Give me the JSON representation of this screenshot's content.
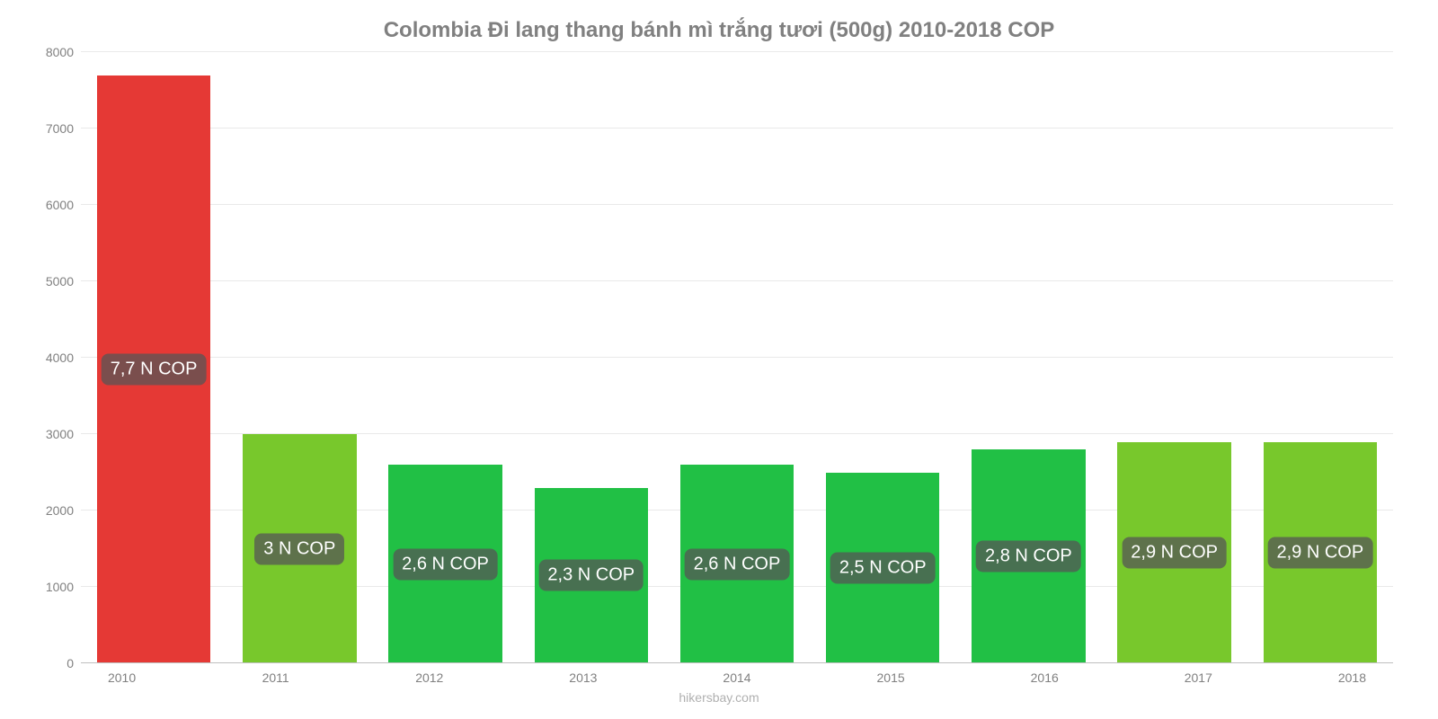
{
  "chart": {
    "type": "bar",
    "title": "Colombia Đi lang thang bánh mì trắng tươi (500g) 2010-2018 COP",
    "title_fontsize": 24,
    "title_color": "#808080",
    "attribution": "hikersbay.com",
    "attribution_color": "#b0b0b0",
    "background_color": "#ffffff",
    "grid_color": "#e9e9e9",
    "axis_color": "#bfbfbf",
    "tick_label_color": "#808080",
    "tick_label_fontsize": 14,
    "bar_label_bg": "rgba(85,85,85,0.75)",
    "bar_label_color": "#ffffff",
    "bar_label_fontsize": 20,
    "bar_width": 0.78,
    "ylim": [
      0,
      8000
    ],
    "ytick_step": 1000,
    "yticks": [
      0,
      1000,
      2000,
      3000,
      4000,
      5000,
      6000,
      7000,
      8000
    ],
    "categories": [
      "2010",
      "2011",
      "2012",
      "2013",
      "2014",
      "2015",
      "2016",
      "2017",
      "2018"
    ],
    "values": [
      7700,
      3000,
      2600,
      2300,
      2600,
      2500,
      2800,
      2900,
      2900
    ],
    "bar_colors": [
      "#e53935",
      "#78c82c",
      "#21c045",
      "#21c045",
      "#21c045",
      "#21c045",
      "#21c045",
      "#78c82c",
      "#78c82c"
    ],
    "bar_labels": [
      "7,7 N COP",
      "3 N COP",
      "2,6 N COP",
      "2,3 N COP",
      "2,6 N COP",
      "2,5 N COP",
      "2,8 N COP",
      "2,9 N COP",
      "2,9 N COP"
    ]
  }
}
